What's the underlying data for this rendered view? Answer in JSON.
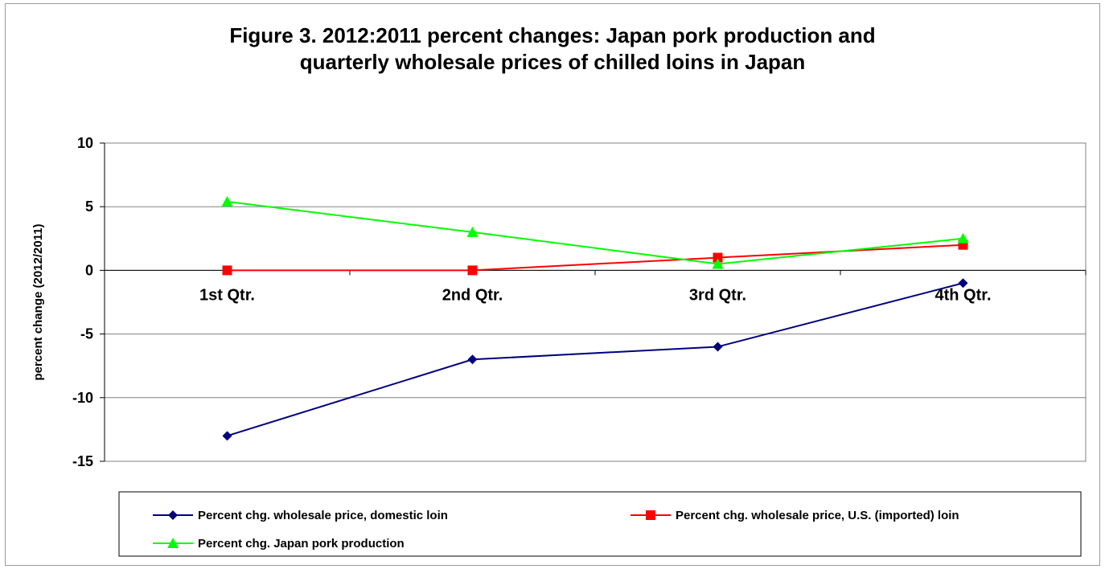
{
  "chart_data": {
    "type": "line",
    "title_lines": [
      "Figure 3.  2012:2011 percent changes: Japan pork production and",
      "quarterly wholesale prices of chilled loins in Japan"
    ],
    "xlabel": "",
    "ylabel": "percent change (2012/2011)",
    "categories": [
      "1st Qtr.",
      "2nd Qtr.",
      "3rd Qtr.",
      "4th Qtr."
    ],
    "ylim": [
      -15,
      10
    ],
    "yticks": [
      10,
      5,
      0,
      -5,
      -10,
      -15
    ],
    "grid": true,
    "legend_position": "bottom",
    "series": [
      {
        "name": "Percent chg. wholesale price, domestic loin",
        "values": [
          -13,
          -7,
          -6,
          -1
        ],
        "color": "#00007f",
        "marker": "diamond"
      },
      {
        "name": "Percent chg. wholesale price, U.S. (imported) loin",
        "values": [
          0,
          0,
          1,
          2
        ],
        "color": "#ff0000",
        "marker": "square"
      },
      {
        "name": "Percent chg. Japan pork production",
        "values": [
          5.4,
          3,
          0.5,
          2.5
        ],
        "color": "#00ff00",
        "marker": "triangle"
      }
    ]
  }
}
